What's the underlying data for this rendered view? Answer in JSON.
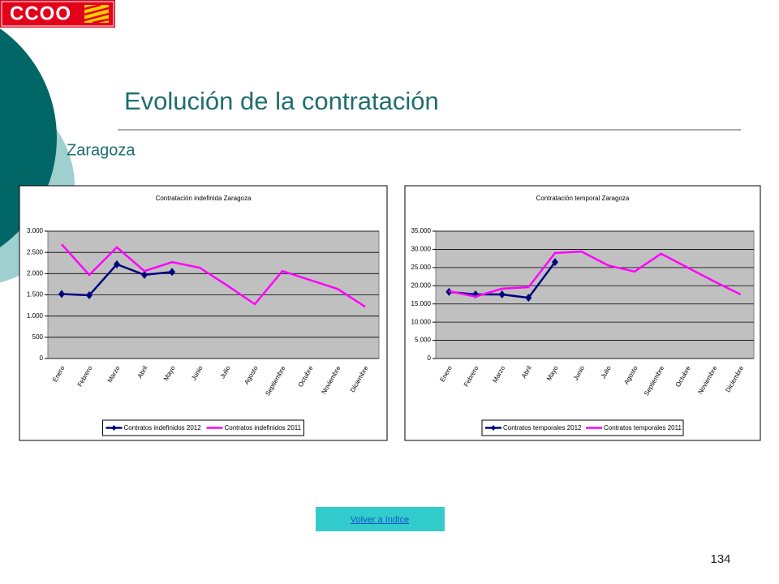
{
  "page": {
    "logo": "CCOO",
    "title": "Evolución de la contratación",
    "subtitle": "Zaragoza",
    "link": "Volver a índice",
    "page_number": "134"
  },
  "chart_data": [
    {
      "type": "line",
      "title": "Contratación indefinida Zaragoza",
      "categories": [
        "Enero",
        "Febrero",
        "Marzo",
        "Abril",
        "Mayo",
        "Junio",
        "Julio",
        "Agosto",
        "Septiembre",
        "Octubre",
        "Noviembre",
        "Diciembre"
      ],
      "series": [
        {
          "name": "Contratos indefinidos 2012",
          "color": "#000080",
          "marker": "diamond",
          "values": [
            1520,
            1490,
            2220,
            1970,
            2040,
            null,
            null,
            null,
            null,
            null,
            null,
            null
          ]
        },
        {
          "name": "Contratos indefinidos 2011",
          "color": "#ff00ff",
          "values": [
            2690,
            1970,
            2620,
            2060,
            2270,
            2140,
            1720,
            1280,
            2060,
            1850,
            1640,
            1220
          ]
        }
      ],
      "ylim": [
        0,
        3000
      ],
      "yticks": [
        0,
        500,
        {
          "value": 1000,
          "label": "1.000"
        },
        {
          "value": 1500,
          "label": "1.500"
        },
        {
          "value": 2000,
          "label": "2.000"
        },
        {
          "value": 2500,
          "label": "2.500"
        },
        {
          "value": 3000,
          "label": "3.000"
        }
      ],
      "grid": true,
      "plot_background": "#c0c0c0",
      "legend": "bottom"
    },
    {
      "type": "line",
      "title": "Contratación temporal Zaragoza",
      "categories": [
        "Enero",
        "Febrero",
        "Marzo",
        "Abril",
        "Mayo",
        "Junio",
        "Julio",
        "Agosto",
        "Septiembre",
        "Octubre",
        "Noviembre",
        "Diciembre"
      ],
      "series": [
        {
          "name": "Contratos temporales 2012",
          "color": "#000080",
          "marker": "diamond",
          "values": [
            18300,
            17600,
            17600,
            16700,
            26500,
            null,
            null,
            null,
            null,
            null,
            null,
            null
          ]
        },
        {
          "name": "Contratos temporales 2011",
          "color": "#ff00ff",
          "values": [
            18500,
            17000,
            19200,
            19600,
            29000,
            29400,
            25600,
            23900,
            28800,
            25000,
            21200,
            17600
          ]
        }
      ],
      "ylim": [
        0,
        35000
      ],
      "yticks": [
        0,
        {
          "value": 5000,
          "label": "5.000"
        },
        {
          "value": 10000,
          "label": "10.000"
        },
        {
          "value": 15000,
          "label": "15.000"
        },
        {
          "value": 20000,
          "label": "20.000"
        },
        {
          "value": 25000,
          "label": "25.000"
        },
        {
          "value": 30000,
          "label": "30.000"
        },
        {
          "value": 35000,
          "label": "35.000"
        }
      ],
      "grid": true,
      "plot_background": "#c0c0c0",
      "legend": "bottom"
    }
  ]
}
